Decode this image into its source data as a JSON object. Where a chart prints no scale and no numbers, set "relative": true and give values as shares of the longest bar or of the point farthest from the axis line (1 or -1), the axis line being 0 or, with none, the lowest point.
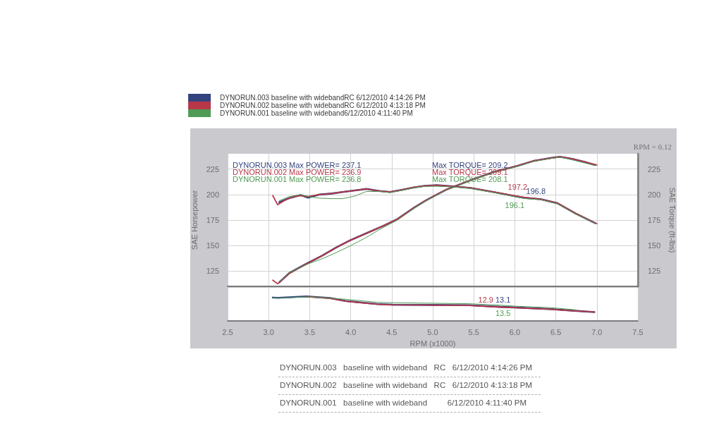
{
  "chart_data": [
    {
      "type": "line",
      "legend": "top left",
      "marker": "none",
      "grid": true,
      "tick_labels": "y",
      "ylabel": "SAE Horsepower",
      "y2label": "SAE Torque (ft-lbs)",
      "xlim": [
        2.5,
        7.5
      ],
      "xticks": [
        2.5,
        3,
        3.5,
        4,
        4.5,
        5,
        5.5,
        6,
        6.5,
        7,
        7.5
      ],
      "ylim": [
        110,
        240
      ],
      "yticks": [
        125,
        150,
        175,
        200,
        225
      ],
      "y2lim": [
        110,
        240
      ],
      "y2ticks": [
        125,
        150,
        175,
        200,
        225
      ],
      "annotations": [
        "DYNORUN.003 Max POWER= 237.1",
        "DYNORUN.002 Max POWER= 236.9",
        "DYNORUN.001 Max POWER= 236.8",
        "Max TORQUE= 209.2",
        "Max TORQUE= 209.1",
        "Max TORQUE= 208.1",
        "RPM = 6.12"
      ],
      "series": [
        {
          "name": "DYNORUN.003 baseline with widebandRC 6/12/2010 4:14:26 PM",
          "color": "#34437e",
          "x": [
            3.13,
            3.25,
            3.48,
            3.65,
            3.82,
            3.99,
            4.19,
            4.39,
            4.57,
            4.77,
            4.91,
            5.05,
            5.17,
            5.46,
            5.74,
            6.03,
            6.23,
            6.45,
            6.55,
            6.7,
            6.85,
            6.98
          ],
          "values": [
            114,
            123,
            133,
            140,
            148,
            155,
            162,
            169,
            176,
            187,
            194,
            200,
            205,
            214,
            222,
            228,
            233,
            236,
            237.1,
            235,
            232,
            229
          ]
        },
        {
          "name": "DYNORUN.002 baseline with widebandRC 6/12/2010 4:13:18 PM",
          "color": "#b8384a",
          "x": [
            3.05,
            3.11,
            3.25,
            3.48,
            3.65,
            3.82,
            3.99,
            4.19,
            4.39,
            4.57,
            4.77,
            4.91,
            5.05,
            5.17,
            5.46,
            5.74,
            6.03,
            6.23,
            6.45,
            6.55,
            6.7,
            6.85,
            7.0
          ],
          "values": [
            116,
            112.5,
            122.5,
            133,
            140,
            148,
            155,
            162,
            169,
            176,
            187,
            194,
            200,
            205,
            214,
            222,
            228,
            233,
            236,
            236.9,
            235,
            232,
            229
          ]
        },
        {
          "name": "DYNORUN.001 baseline with wideband6/12/2010 4:11:40 PM",
          "color": "#4f9a55",
          "x": [
            3.13,
            3.25,
            3.48,
            3.65,
            3.82,
            3.99,
            4.19,
            4.39,
            4.57,
            4.77,
            4.91,
            5.05,
            5.17,
            5.46,
            5.74,
            6.03,
            6.23,
            6.45,
            6.55,
            6.7,
            6.85,
            6.98
          ],
          "values": [
            114.5,
            123.5,
            132,
            137,
            143,
            149.5,
            158,
            167.5,
            175,
            186.5,
            193.5,
            199.5,
            204.5,
            213.5,
            221.5,
            227.5,
            232.5,
            235.5,
            236.8,
            234,
            231,
            228.5
          ]
        },
        {
          "color": "#34437e",
          "x": [
            3.13,
            3.25,
            3.39,
            3.48,
            3.62,
            3.77,
            3.9,
            4.05,
            4.19,
            4.35,
            4.48,
            4.62,
            4.77,
            4.9,
            5.05,
            5.25,
            5.46,
            5.74,
            6.03,
            6.12,
            6.31,
            6.52,
            6.74,
            6.98
          ],
          "values": [
            192.5,
            196.5,
            199.5,
            197,
            200,
            201,
            202.5,
            204,
            205.5,
            203.5,
            202.5,
            204.5,
            207,
            208.5,
            209.2,
            208,
            206.5,
            202.5,
            198,
            196.8,
            195.5,
            191.5,
            181.5,
            172
          ],
          "value_labels": [
            null,
            null,
            null,
            null,
            null,
            null,
            null,
            null,
            null,
            null,
            null,
            null,
            null,
            null,
            null,
            null,
            null,
            null,
            null,
            "196.8",
            null,
            null,
            null,
            null
          ]
        },
        {
          "color": "#b8384a",
          "x": [
            3.05,
            3.11,
            3.2,
            3.3,
            3.39,
            3.48,
            3.62,
            3.77,
            3.9,
            4.05,
            4.19,
            4.35,
            4.48,
            4.62,
            4.77,
            4.9,
            5.05,
            5.25,
            5.46,
            5.74,
            6.03,
            6.12,
            6.31,
            6.52,
            6.74,
            7.0
          ],
          "values": [
            199,
            190,
            194.5,
            198,
            199,
            198,
            200,
            201,
            202.5,
            204,
            205.5,
            203.5,
            202.5,
            204.5,
            207,
            208.5,
            209.1,
            208,
            206.5,
            202.5,
            198.5,
            197.2,
            195.5,
            191.5,
            181.5,
            171.5
          ],
          "value_labels": [
            null,
            null,
            null,
            null,
            null,
            null,
            null,
            null,
            null,
            null,
            null,
            null,
            null,
            null,
            null,
            null,
            null,
            null,
            null,
            null,
            null,
            "197.2",
            null,
            null,
            null,
            null
          ]
        },
        {
          "color": "#4f9a55",
          "x": [
            3.13,
            3.25,
            3.39,
            3.48,
            3.62,
            3.77,
            3.9,
            4.05,
            4.19,
            4.35,
            4.48,
            4.62,
            4.77,
            4.9,
            5.05,
            5.25,
            5.46,
            5.74,
            6.03,
            6.12,
            6.31,
            6.52,
            6.74,
            6.98
          ],
          "values": [
            194,
            198,
            200,
            198,
            196.5,
            196,
            196,
            198.5,
            203,
            203,
            202,
            204,
            206.5,
            208,
            208.1,
            207.5,
            206,
            202,
            197.5,
            196.1,
            195,
            191,
            181,
            172
          ],
          "value_labels": [
            null,
            null,
            null,
            null,
            null,
            null,
            null,
            null,
            null,
            null,
            null,
            null,
            null,
            null,
            null,
            null,
            null,
            null,
            null,
            "196.1",
            null,
            null,
            null,
            null
          ]
        }
      ]
    },
    {
      "type": "line",
      "relative": true,
      "grid": "x",
      "tick_labels": "x",
      "marker": "none",
      "xlabel": "RPM (x1000)",
      "xlim": [
        2.5,
        7.5
      ],
      "xticks": [
        2.5,
        {
          "value": 3,
          "label": "3.0"
        },
        3.5,
        {
          "value": 4,
          "label": "4.0"
        },
        4.5,
        {
          "value": 5,
          "label": "5.0"
        },
        5.5,
        {
          "value": 6,
          "label": "6.0"
        },
        6.5,
        {
          "value": 7,
          "label": "7.0"
        },
        7.5
      ],
      "annotations": [
        "13.1",
        "12.9",
        "13.5",
        "DYNORUN.003   baseline with wideband   RC   6/12/2010 4:14:26 PM",
        "DYNORUN.002   baseline with wideband   RC   6/12/2010 4:13:18 PM",
        "DYNORUN.001   baseline with wideband         6/12/2010 4:11:40 PM"
      ],
      "series": [
        {
          "color": "#34437e",
          "x": [
            3.05,
            3.12,
            3.46,
            3.75,
            3.94,
            4.32,
            4.51,
            5.0,
            5.45,
            5.83,
            6.0,
            6.44,
            6.7,
            6.97
          ],
          "values": [
            0.95,
            0.94,
            1,
            0.93,
            0.81,
            0.69,
            0.66,
            0.65,
            0.64,
            0.57,
            0.55,
            0.48,
            0.42,
            0.36
          ]
        },
        {
          "color": "#b8384a",
          "x": [
            3.46,
            3.75,
            3.94,
            4.32,
            4.51,
            5.0,
            5.45,
            5.83,
            6.0,
            6.44,
            6.7,
            6.97
          ],
          "values": [
            0.99,
            0.92,
            0.8,
            0.68,
            0.65,
            0.64,
            0.63,
            0.56,
            0.54,
            0.47,
            0.41,
            0.36
          ]
        },
        {
          "color": "#4f9a55",
          "x": [
            3.05,
            3.12,
            3.46,
            3.75,
            3.94,
            4.32,
            4.51,
            5.0,
            5.45,
            5.83,
            6.0,
            6.44,
            6.74
          ],
          "values": [
            0.94,
            0.93,
            0.98,
            0.93,
            0.88,
            0.76,
            0.74,
            0.72,
            0.7,
            0.64,
            0.6,
            0.54,
            0.45
          ]
        }
      ]
    }
  ]
}
